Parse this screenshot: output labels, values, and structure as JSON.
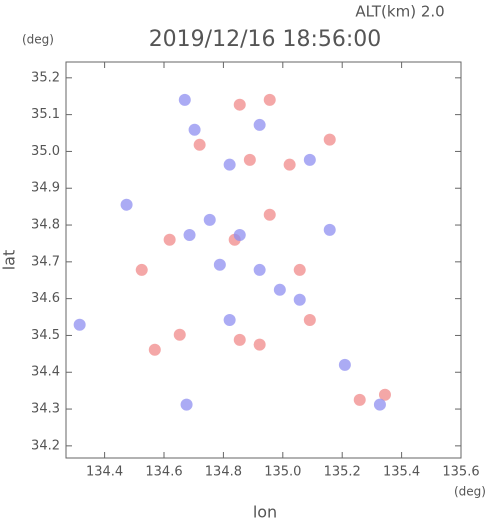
{
  "chart_data": {
    "type": "scatter",
    "title": "2019/12/16 18:56:00",
    "subtitle": "ALT(km)  2.0",
    "x_label": "lon",
    "y_label": "lat",
    "x_unit": "(deg)",
    "y_unit": "(deg)",
    "xlim": [
      134.27,
      135.6
    ],
    "ylim": [
      34.167,
      35.243
    ],
    "xticks": [
      134.4,
      134.6,
      134.8,
      {
        "value": 135.0,
        "label": "135.0"
      },
      135.2,
      135.4,
      135.6
    ],
    "yticks": [
      34.2,
      34.3,
      34.4,
      34.5,
      34.6,
      34.7,
      34.8,
      34.9,
      {
        "value": 35.0,
        "label": "35.0"
      },
      35.1,
      35.2
    ],
    "series": [
      {
        "color": "#f08a8a",
        "x": [
          134.855,
          134.956,
          134.72,
          135.023,
          134.889,
          134.838,
          134.619,
          135.057,
          134.855,
          134.922,
          134.653,
          135.259,
          135.344,
          134.525,
          134.569,
          135.091,
          134.956,
          135.158
        ],
        "y": [
          35.127,
          35.14,
          35.018,
          34.964,
          34.977,
          34.76,
          34.76,
          34.678,
          34.488,
          34.475,
          34.502,
          34.325,
          34.339,
          34.678,
          34.461,
          34.542,
          34.828,
          35.032
        ]
      },
      {
        "color": "#8f8ff0",
        "x": [
          134.67,
          134.703,
          134.922,
          135.091,
          134.821,
          134.754,
          134.686,
          134.855,
          135.158,
          134.788,
          134.99,
          134.821,
          135.057,
          135.209,
          135.327,
          134.316,
          134.474,
          134.676,
          134.922
        ],
        "y": [
          35.14,
          35.059,
          35.072,
          34.977,
          34.964,
          34.814,
          34.773,
          34.773,
          34.787,
          34.692,
          34.624,
          34.542,
          34.597,
          34.42,
          34.312,
          34.529,
          34.855,
          34.312,
          34.678
        ]
      }
    ]
  }
}
